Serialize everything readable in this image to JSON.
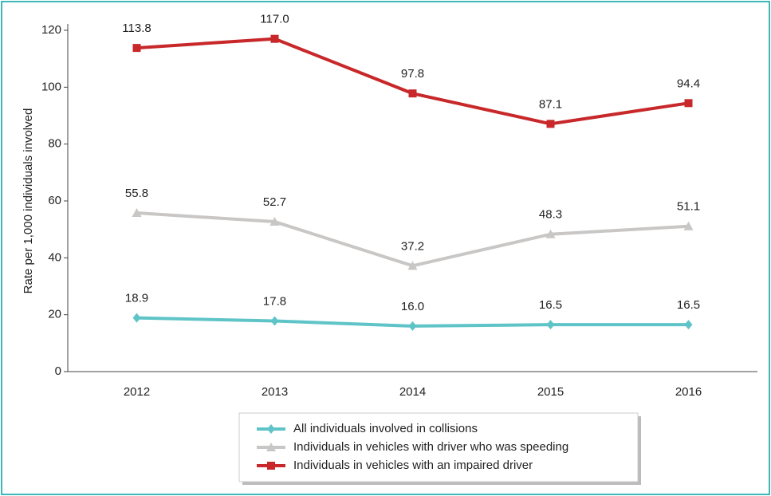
{
  "chart_data": {
    "type": "line",
    "y_label": "Rate per 1,000 individuals involved",
    "categories": [
      "2012",
      "2013",
      "2014",
      "2015",
      "2016"
    ],
    "series": [
      {
        "name": "All individuals involved in collisions",
        "color": "#5fc4c8",
        "marker": "diamond",
        "values": [
          18.9,
          17.8,
          16.0,
          16.5,
          16.5
        ],
        "value_labels": [
          "18.9",
          "17.8",
          "16.0",
          "16.5",
          "16.5"
        ]
      },
      {
        "name": "Individuals in vehicles with driver who was speeding",
        "color": "#c9c7c5",
        "marker": "triangle",
        "values": [
          55.8,
          52.7,
          37.2,
          48.3,
          51.1
        ],
        "value_labels": [
          "55.8",
          "52.7",
          "37.2",
          "48.3",
          "51.1"
        ]
      },
      {
        "name": "Individuals in vehicles with an impaired driver",
        "color": "#c8282a",
        "marker": "square",
        "values": [
          113.8,
          117.0,
          97.8,
          87.1,
          94.4
        ],
        "value_labels": [
          "113.8",
          "117.0",
          "97.8",
          "87.1",
          "94.4"
        ]
      }
    ],
    "ylim": [
      0,
      120
    ],
    "yticks": [
      0,
      20,
      40,
      60,
      80,
      100,
      120
    ],
    "grid": false
  }
}
